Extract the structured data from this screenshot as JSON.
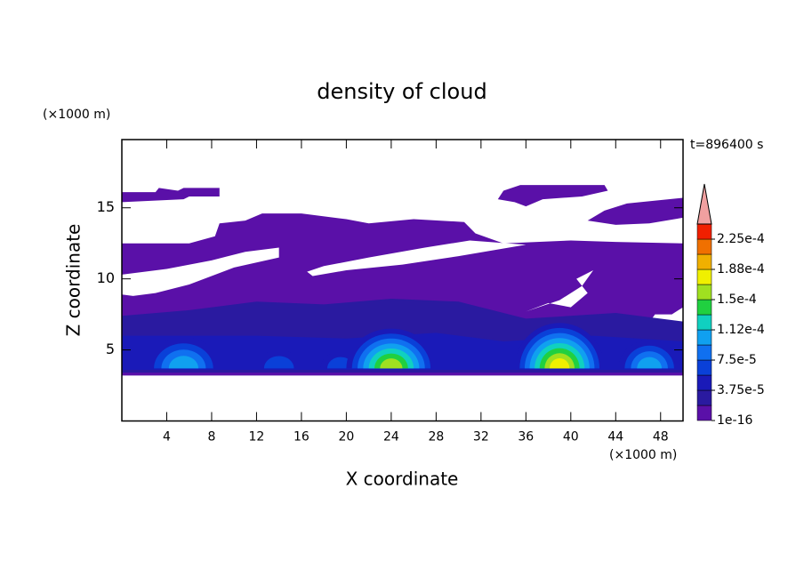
{
  "chart_data": {
    "type": "contour",
    "title": "density of cloud",
    "xlabel": "X coordinate",
    "ylabel": "Z coordinate",
    "xunit": "(×1000 m)",
    "yunit": "(×1000 m)",
    "time_label": "t=896400 s",
    "xlim": [
      0,
      50
    ],
    "xticks": [
      4,
      8,
      12,
      16,
      20,
      24,
      28,
      32,
      36,
      40,
      44,
      48
    ],
    "ylim": [
      0,
      19.8
    ],
    "yticks": [
      5,
      10,
      15
    ],
    "colorbar": {
      "lim": [
        1e-16,
        0.00024375
      ],
      "ticks": [
        {
          "value": 1e-16,
          "label": "1e-16"
        },
        {
          "value": 3.75e-05,
          "label": "3.75e-5"
        },
        {
          "value": 7.5e-05,
          "label": "7.5e-5"
        },
        {
          "value": 0.0001125,
          "label": "1.12e-4"
        },
        {
          "value": 0.00015,
          "label": "1.5e-4"
        },
        {
          "value": 0.0001875,
          "label": "1.88e-4"
        },
        {
          "value": 0.000225,
          "label": "2.25e-4"
        }
      ],
      "colors": [
        "#5a10a8",
        "#2a1aa0",
        "#1a1ab8",
        "#0a40d8",
        "#1070f0",
        "#10a0f0",
        "#10d0c0",
        "#20d040",
        "#a0e020",
        "#f0f000",
        "#f0b000",
        "#f07000",
        "#f02000"
      ],
      "over_color": "#f0a0a0"
    }
  }
}
